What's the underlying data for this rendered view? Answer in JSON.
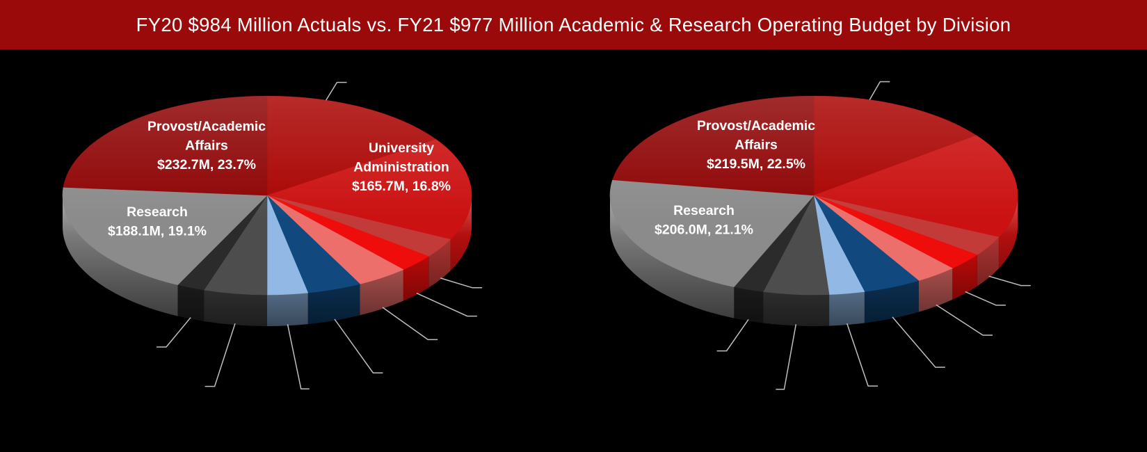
{
  "title": "FY20 $984 Million Actuals vs. FY21 $977 Million Academic & Research Operating Budget by Division",
  "colors": {
    "background": "#000000",
    "title_bar": "#9B0A0A",
    "title_text": "#FFFFFF",
    "label_text": "#FFFFFF",
    "leader_line": "#BFBFBF"
  },
  "chart_data": [
    {
      "type": "pie",
      "style": "3d",
      "period": "FY20",
      "period_kind": "Actuals",
      "total": "$984 Million",
      "start_angle": "12 o'clock",
      "direction": "clockwise",
      "slices": [
        {
          "name": null,
          "value": 15.5,
          "color": "#A90301",
          "labeled": false
        },
        {
          "name": "University Administration",
          "name_lines": [
            "University",
            "Administration"
          ],
          "amount": "$165.7M",
          "percent": "16.8%",
          "amount_label": "$165.7M, 16.8%",
          "value": 16.8,
          "color": "#CB1111",
          "labeled": true
        },
        {
          "name": null,
          "value": 3.2,
          "color": "#C33B38",
          "labeled": false
        },
        {
          "name": null,
          "value": 2.9,
          "color": "#EE0D0B",
          "labeled": false
        },
        {
          "name": null,
          "value": 4.1,
          "color": "#EC6F6B",
          "labeled": false
        },
        {
          "name": null,
          "value": 4.3,
          "color": "#11497E",
          "labeled": false
        },
        {
          "name": null,
          "value": 3.2,
          "color": "#92B9E5",
          "labeled": false
        },
        {
          "name": null,
          "value": 5.0,
          "color": "#4D4D4D",
          "labeled": false
        },
        {
          "name": null,
          "value": 2.2,
          "color": "#2B2B2B",
          "labeled": false
        },
        {
          "name": "Research",
          "name_lines": [
            "Research"
          ],
          "amount": "$188.1M",
          "percent": "19.1%",
          "amount_label": "$188.1M, 19.1%",
          "value": 19.1,
          "color": "#8B8B8B",
          "labeled": true
        },
        {
          "name": "Provost/Academic Affairs",
          "name_lines": [
            "Provost/Academic",
            "Affairs"
          ],
          "amount": "$232.7M",
          "percent": "23.7%",
          "amount_label": "$232.7M, 23.7%",
          "value": 23.7,
          "color": "#8E0304",
          "labeled": true
        }
      ]
    },
    {
      "type": "pie",
      "style": "3d",
      "period": "FY21",
      "period_kind": "Operating Budget",
      "total": "$977 Million",
      "start_angle": "12 o'clock",
      "direction": "clockwise",
      "slices": [
        {
          "name": null,
          "value": 14.7,
          "color": "#A90301",
          "labeled": false
        },
        {
          "name": null,
          "value": 17.2,
          "color": "#CB1111",
          "labeled": false,
          "leader": false
        },
        {
          "name": null,
          "value": 3.3,
          "color": "#C33B38",
          "labeled": false
        },
        {
          "name": null,
          "value": 2.9,
          "color": "#EE0D0B",
          "labeled": false
        },
        {
          "name": null,
          "value": 3.3,
          "color": "#EC6F6B",
          "labeled": false
        },
        {
          "name": null,
          "value": 4.6,
          "color": "#11497E",
          "labeled": false
        },
        {
          "name": null,
          "value": 2.8,
          "color": "#92B9E5",
          "labeled": false
        },
        {
          "name": null,
          "value": 5.2,
          "color": "#4D4D4D",
          "labeled": false
        },
        {
          "name": null,
          "value": 2.4,
          "color": "#2B2B2B",
          "labeled": false
        },
        {
          "name": "Research",
          "name_lines": [
            "Research"
          ],
          "amount": "$206.0M",
          "percent": "21.1%",
          "amount_label": "$206.0M, 21.1%",
          "value": 21.1,
          "color": "#8B8B8B",
          "labeled": true
        },
        {
          "name": "Provost/Academic Affairs",
          "name_lines": [
            "Provost/Academic",
            "Affairs"
          ],
          "amount": "$219.5M",
          "percent": "22.5%",
          "amount_label": "$219.5M, 22.5%",
          "value": 22.5,
          "color": "#8E0304",
          "labeled": true
        }
      ]
    }
  ]
}
